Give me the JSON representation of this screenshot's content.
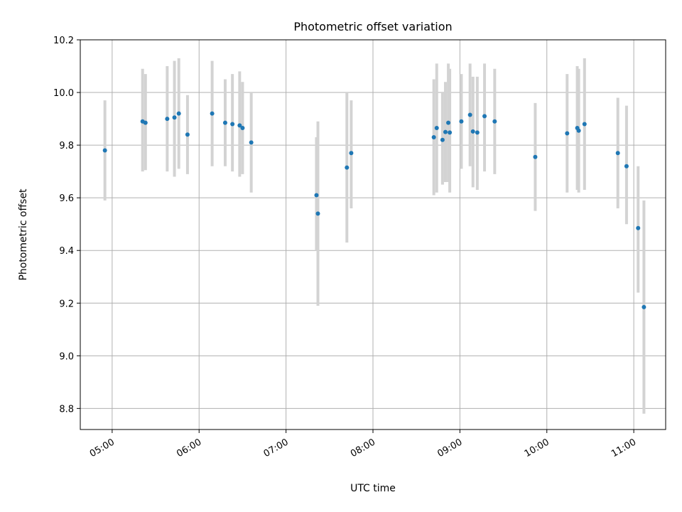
{
  "chart_data": {
    "type": "scatter",
    "title": "Photometric offset variation",
    "xlabel": "UTC time",
    "ylabel": "Photometric offset",
    "xlim": [
      "04:38",
      "11:22"
    ],
    "ylim": [
      8.72,
      10.2
    ],
    "x_ticks": [
      "05:00",
      "06:00",
      "07:00",
      "08:00",
      "09:00",
      "10:00",
      "11:00"
    ],
    "y_ticks": [
      "8.8",
      "9.0",
      "9.2",
      "9.4",
      "9.6",
      "9.8",
      "10.0",
      "10.2"
    ],
    "grid": true,
    "marker_color": "#1f77b4",
    "errorbar_color": "#d3d3d3",
    "points": [
      {
        "x": "04:55",
        "y": 9.78,
        "low": 9.59,
        "high": 9.97
      },
      {
        "x": "05:21",
        "y": 9.89,
        "low": 9.7,
        "high": 10.09
      },
      {
        "x": "05:23",
        "y": 9.885,
        "low": 9.705,
        "high": 10.07
      },
      {
        "x": "05:38",
        "y": 9.9,
        "low": 9.7,
        "high": 10.1
      },
      {
        "x": "05:43",
        "y": 9.905,
        "low": 9.68,
        "high": 10.12
      },
      {
        "x": "05:46",
        "y": 9.92,
        "low": 9.71,
        "high": 10.13
      },
      {
        "x": "05:52",
        "y": 9.84,
        "low": 9.69,
        "high": 9.99
      },
      {
        "x": "06:09",
        "y": 9.92,
        "low": 9.72,
        "high": 10.12
      },
      {
        "x": "06:18",
        "y": 9.885,
        "low": 9.72,
        "high": 10.05
      },
      {
        "x": "06:23",
        "y": 9.88,
        "low": 9.7,
        "high": 10.07
      },
      {
        "x": "06:28",
        "y": 9.875,
        "low": 9.68,
        "high": 10.08
      },
      {
        "x": "06:30",
        "y": 9.865,
        "low": 9.69,
        "high": 10.04
      },
      {
        "x": "06:36",
        "y": 9.81,
        "low": 9.62,
        "high": 10.0
      },
      {
        "x": "07:21",
        "y": 9.61,
        "low": 9.4,
        "high": 9.83
      },
      {
        "x": "07:22",
        "y": 9.54,
        "low": 9.19,
        "high": 9.89
      },
      {
        "x": "07:42",
        "y": 9.715,
        "low": 9.43,
        "high": 10.0
      },
      {
        "x": "07:45",
        "y": 9.77,
        "low": 9.56,
        "high": 9.97
      },
      {
        "x": "08:42",
        "y": 9.83,
        "low": 9.61,
        "high": 10.05
      },
      {
        "x": "08:44",
        "y": 9.865,
        "low": 9.62,
        "high": 10.11
      },
      {
        "x": "08:48",
        "y": 9.82,
        "low": 9.65,
        "high": 10.0
      },
      {
        "x": "08:50",
        "y": 9.85,
        "low": 9.66,
        "high": 10.04
      },
      {
        "x": "08:52",
        "y": 9.885,
        "low": 9.66,
        "high": 10.11
      },
      {
        "x": "08:53",
        "y": 9.848,
        "low": 9.62,
        "high": 10.09
      },
      {
        "x": "09:01",
        "y": 9.89,
        "low": 9.71,
        "high": 10.07
      },
      {
        "x": "09:07",
        "y": 9.915,
        "low": 9.72,
        "high": 10.11
      },
      {
        "x": "09:09",
        "y": 9.852,
        "low": 9.64,
        "high": 10.06
      },
      {
        "x": "09:12",
        "y": 9.848,
        "low": 9.63,
        "high": 10.06
      },
      {
        "x": "09:17",
        "y": 9.91,
        "low": 9.7,
        "high": 10.11
      },
      {
        "x": "09:24",
        "y": 9.89,
        "low": 9.69,
        "high": 10.09
      },
      {
        "x": "09:52",
        "y": 9.755,
        "low": 9.55,
        "high": 9.96
      },
      {
        "x": "10:14",
        "y": 9.845,
        "low": 9.62,
        "high": 10.07
      },
      {
        "x": "10:21",
        "y": 9.865,
        "low": 9.63,
        "high": 10.1
      },
      {
        "x": "10:22",
        "y": 9.855,
        "low": 9.62,
        "high": 10.09
      },
      {
        "x": "10:26",
        "y": 9.88,
        "low": 9.63,
        "high": 10.13
      },
      {
        "x": "10:49",
        "y": 9.77,
        "low": 9.56,
        "high": 9.98
      },
      {
        "x": "10:55",
        "y": 9.72,
        "low": 9.5,
        "high": 9.95
      },
      {
        "x": "11:03",
        "y": 9.485,
        "low": 9.24,
        "high": 9.72
      },
      {
        "x": "11:07",
        "y": 9.185,
        "low": 8.78,
        "high": 9.59
      }
    ]
  }
}
